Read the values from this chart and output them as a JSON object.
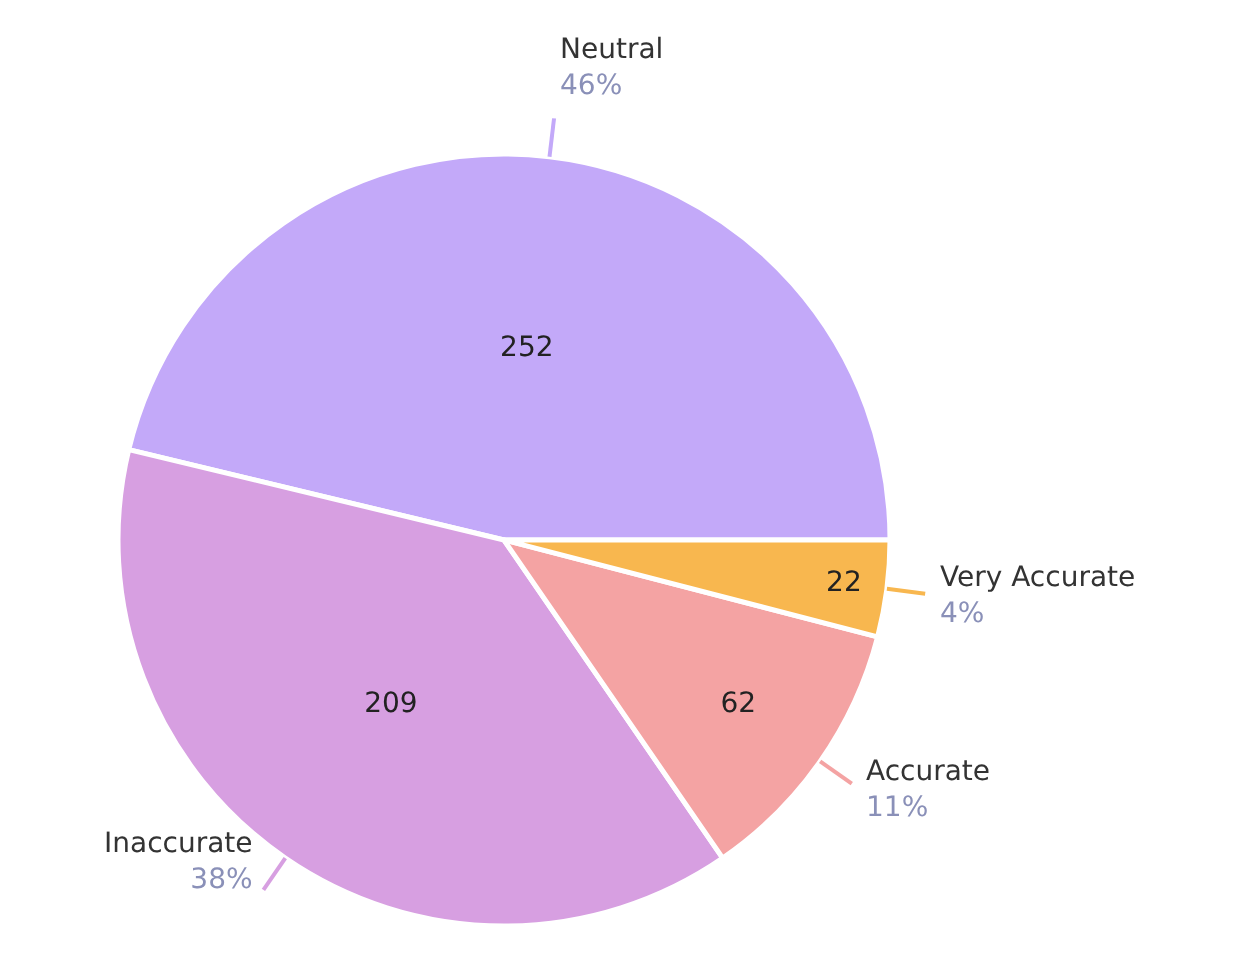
{
  "chart_data": {
    "type": "pie",
    "categories": [
      "Neutral",
      "Inaccurate",
      "Accurate",
      "Very Accurate"
    ],
    "values": [
      252,
      209,
      62,
      22
    ],
    "colors": [
      "#c3a9f9",
      "#d79fe1",
      "#f4a3a3",
      "#f8b74f"
    ],
    "data_labels": true,
    "annotations": [
      "46%",
      "38%",
      "11%",
      "4%"
    ],
    "legend": false
  }
}
